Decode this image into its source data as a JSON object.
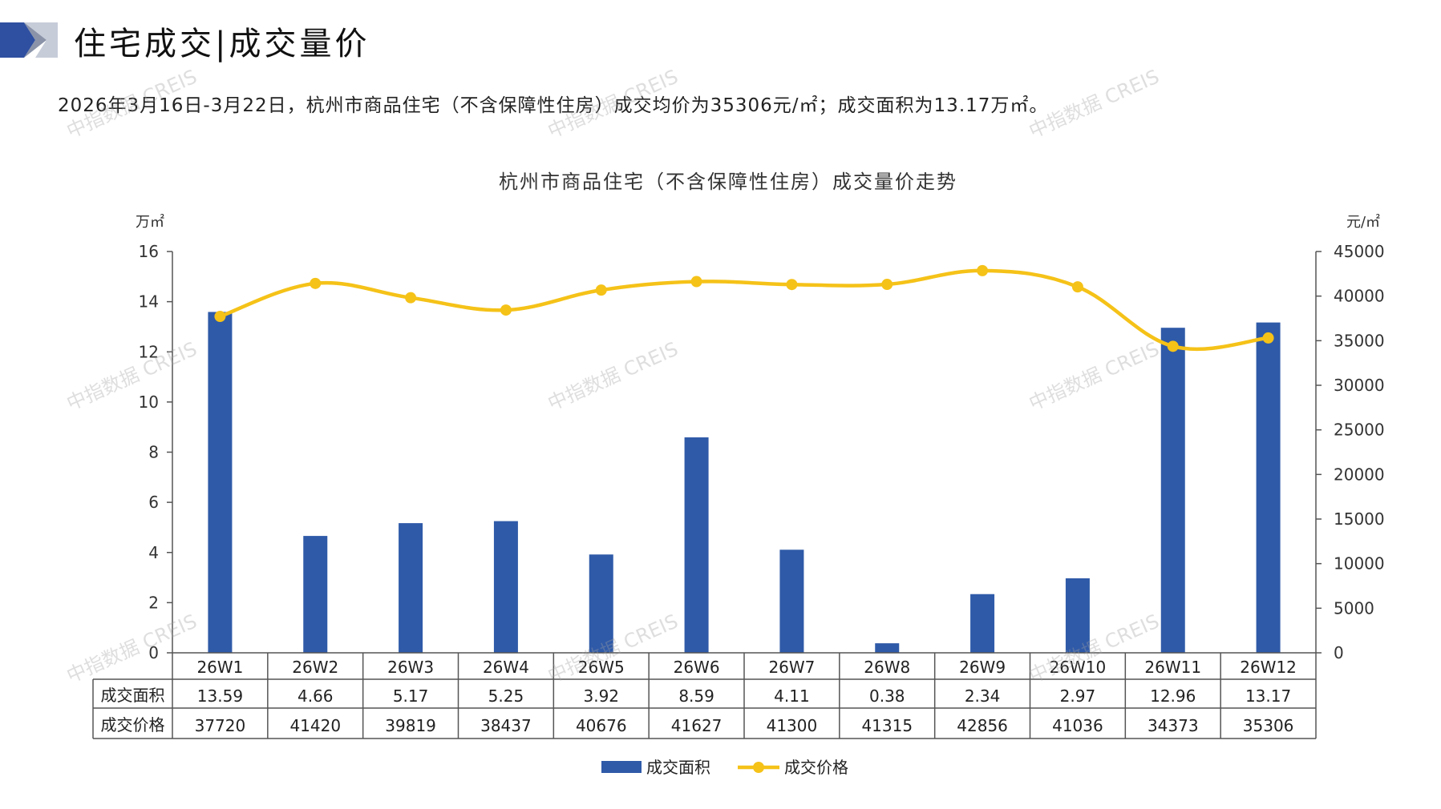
{
  "header": {
    "title": "住宅成交|成交量价",
    "summary": "2026年3月16日-3月22日，杭州市商品住宅（不含保障性住房）成交均价为35306元/㎡；成交面积为13.17万㎡。"
  },
  "watermark_text": "中指数据 CREIS",
  "colors": {
    "bar": "#2f5aa8",
    "line": "#f5c218",
    "axis": "#555555",
    "header_dark": "#2f4fa0",
    "header_light": "#aab4c8"
  },
  "chart_data": {
    "type": "bar",
    "title": "杭州市商品住宅（不含保障性住房）成交量价走势",
    "y_left_unit": "万㎡",
    "y_right_unit": "元/㎡",
    "categories": [
      "26W1",
      "26W2",
      "26W3",
      "26W4",
      "26W5",
      "26W6",
      "26W7",
      "26W8",
      "26W9",
      "26W10",
      "26W11",
      "26W12"
    ],
    "series": [
      {
        "name": "成交面积",
        "type": "bar",
        "axis": "left",
        "display": [
          "13.59",
          "4.66",
          "5.17",
          "5.25",
          "3.92",
          "8.59",
          "4.11",
          "0.38",
          "2.34",
          "2.97",
          "12.96",
          "13.17"
        ],
        "values": [
          13.59,
          4.66,
          5.17,
          5.25,
          3.92,
          8.59,
          4.11,
          0.38,
          2.34,
          2.97,
          12.96,
          13.17
        ]
      },
      {
        "name": "成交价格",
        "type": "line",
        "axis": "right",
        "values": [
          37720,
          41420,
          39819,
          38437,
          40676,
          41627,
          41300,
          41315,
          42856,
          41036,
          34373,
          35306
        ]
      }
    ],
    "y_left_ticks": [
      "0",
      "2",
      "4",
      "6",
      "8",
      "10",
      "12",
      "14",
      "16"
    ],
    "y_left_range": [
      0,
      16
    ],
    "y_right_ticks": [
      "0",
      "5000",
      "10000",
      "15000",
      "20000",
      "25000",
      "30000",
      "35000",
      "40000",
      "45000"
    ],
    "y_right_range": [
      0,
      45000
    ],
    "legend_position": "bottom"
  }
}
